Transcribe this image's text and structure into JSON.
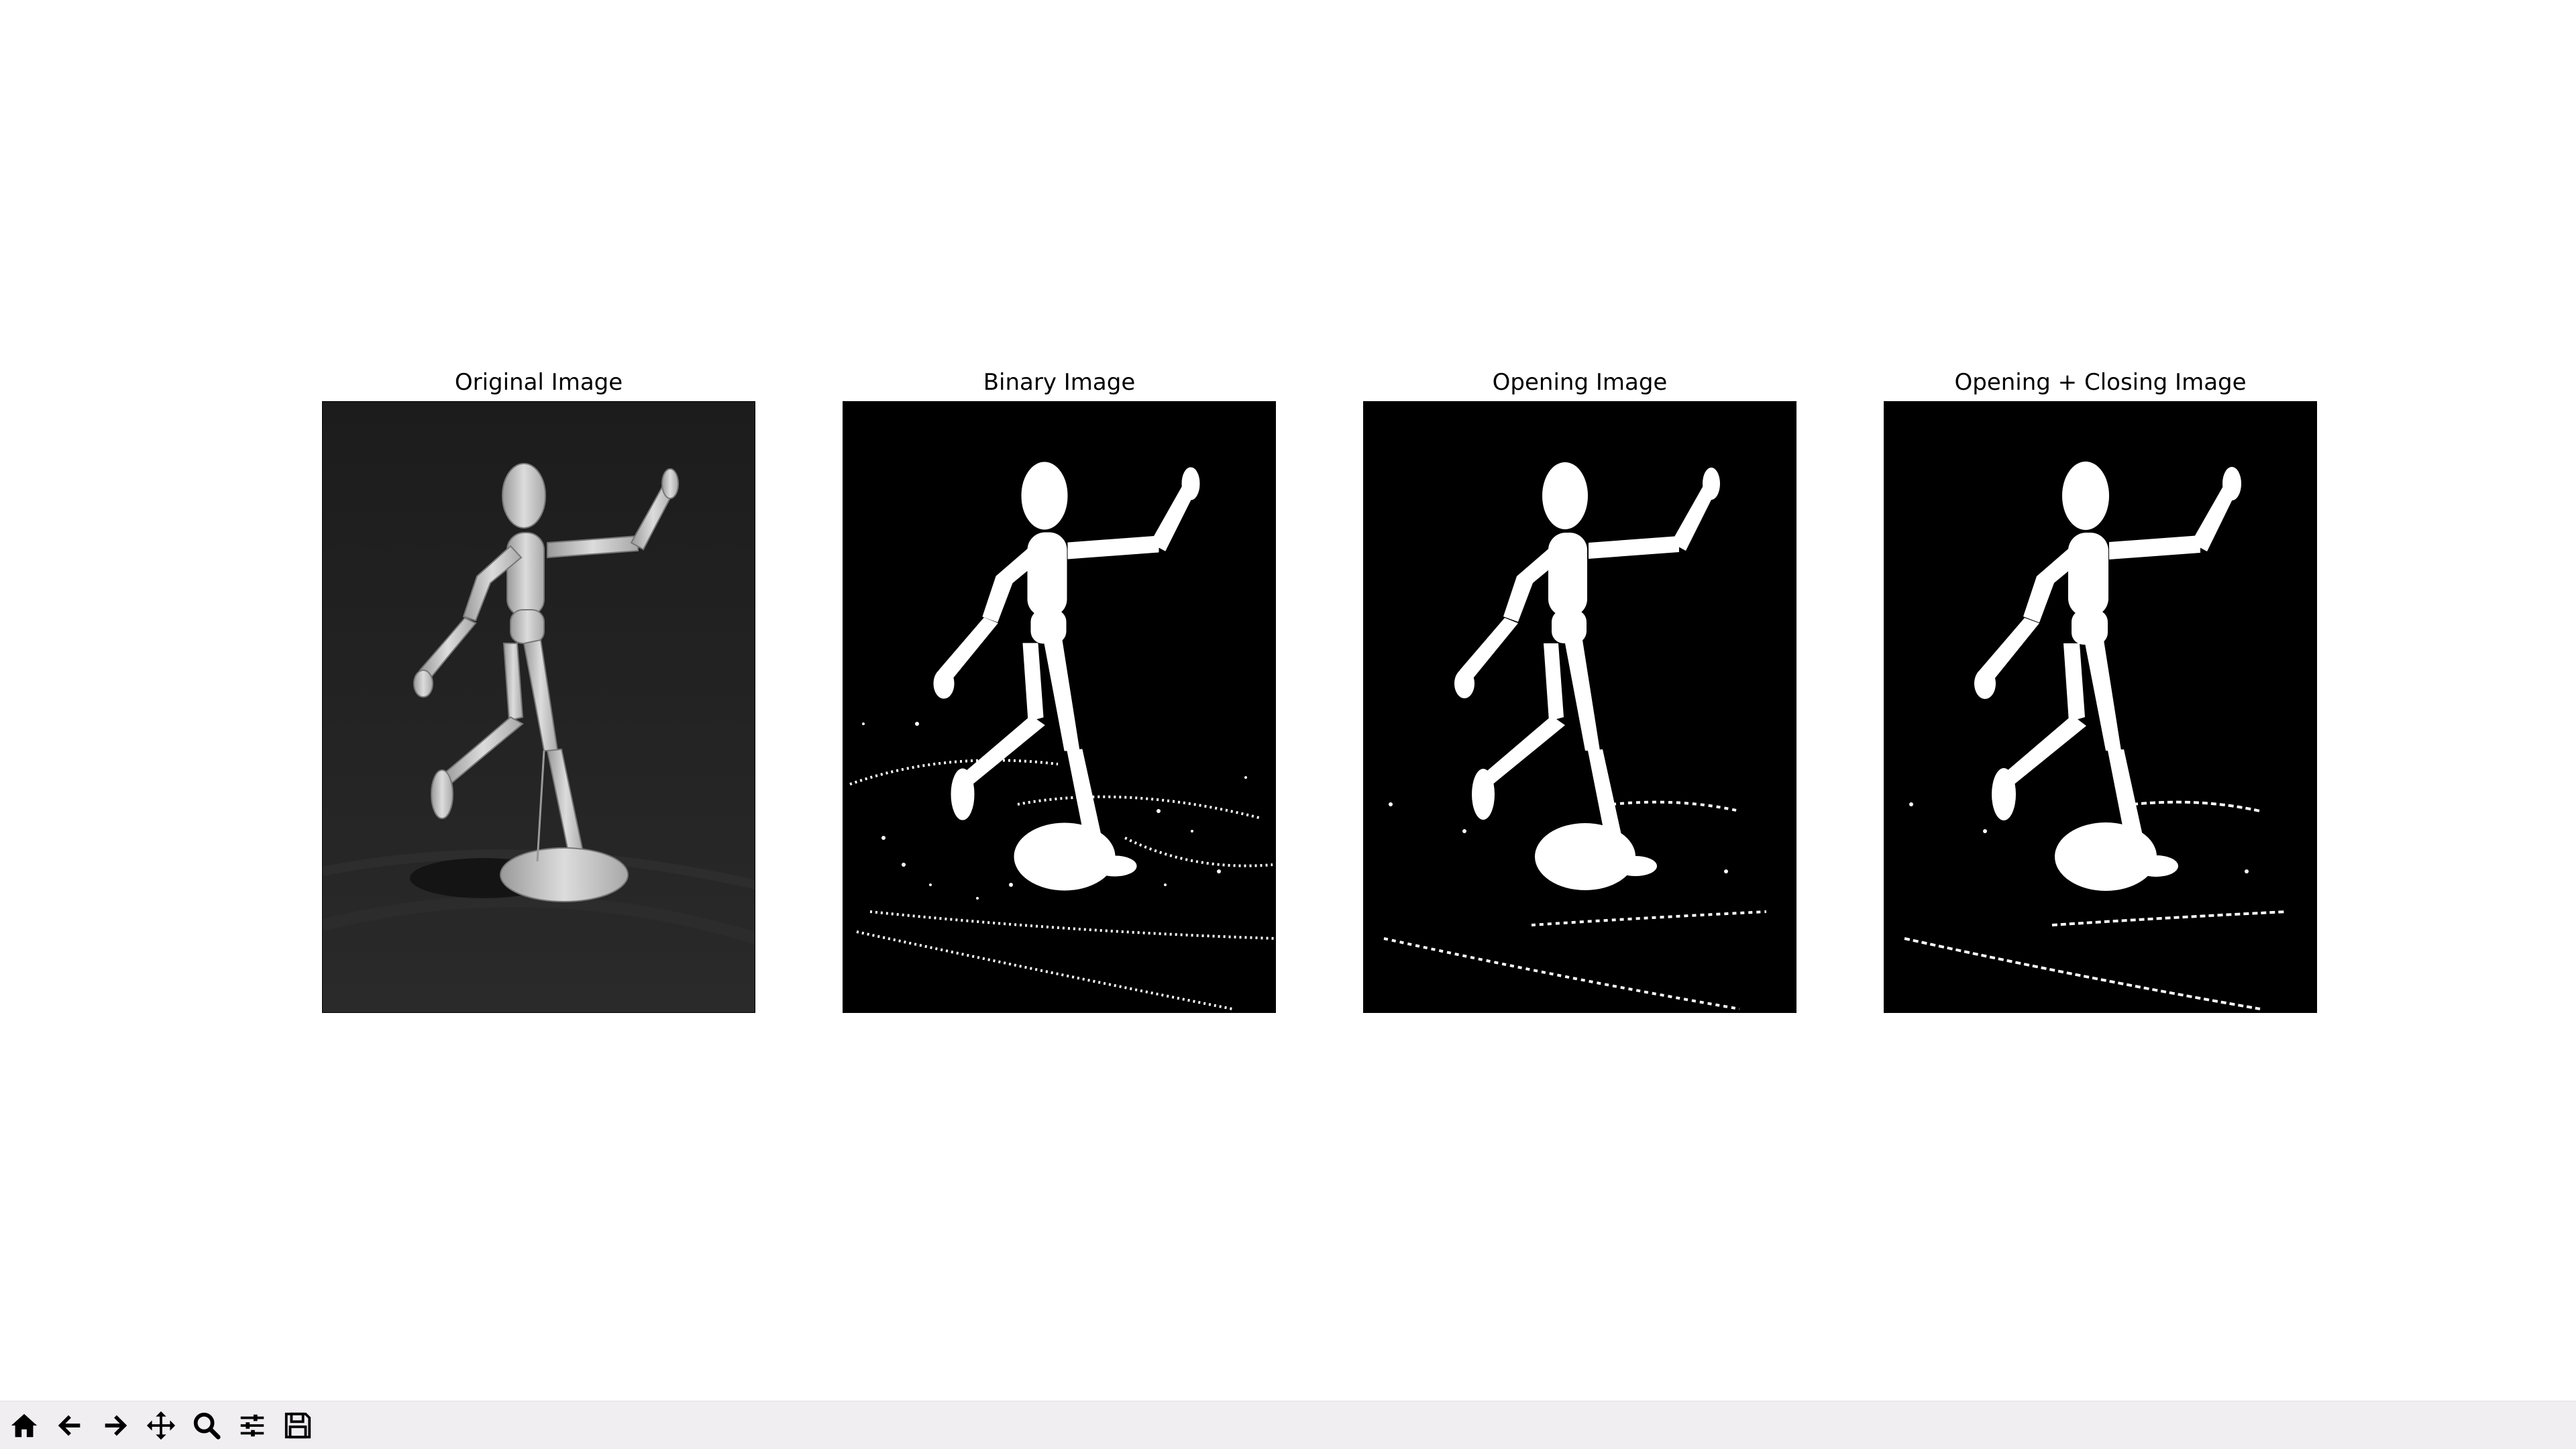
{
  "window": {
    "background": "#ffffff"
  },
  "panels": [
    {
      "id": "original",
      "title": "Original Image",
      "style": "grayscale"
    },
    {
      "id": "binary",
      "title": "Binary Image",
      "style": "binary-noisy"
    },
    {
      "id": "opening",
      "title": "Opening Image",
      "style": "binary-opened"
    },
    {
      "id": "opening-closing",
      "title": "Opening + Closing Image",
      "style": "binary-closed"
    }
  ],
  "toolbar": {
    "buttons": [
      {
        "name": "home-button",
        "icon": "home-icon"
      },
      {
        "name": "back-button",
        "icon": "arrow-left-icon"
      },
      {
        "name": "forward-button",
        "icon": "arrow-right-icon"
      },
      {
        "name": "pan-button",
        "icon": "move-icon"
      },
      {
        "name": "zoom-button",
        "icon": "magnifier-icon"
      },
      {
        "name": "configure-subplots-button",
        "icon": "sliders-icon"
      },
      {
        "name": "save-button",
        "icon": "floppy-disk-icon"
      }
    ],
    "background": "#f0eef0"
  }
}
